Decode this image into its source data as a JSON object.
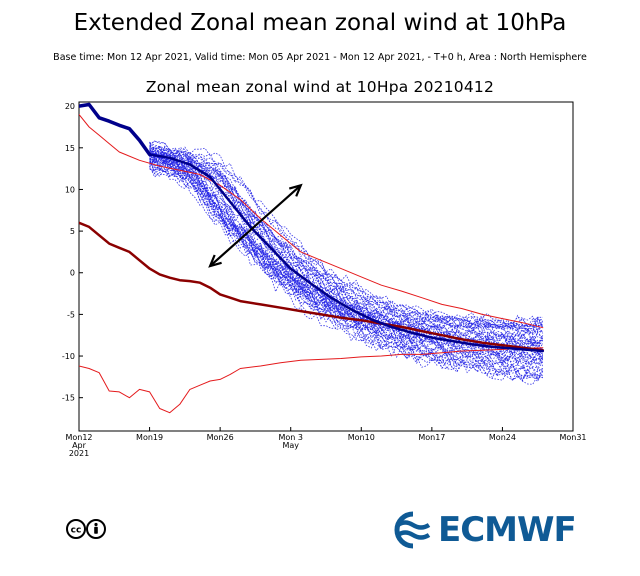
{
  "header": {
    "title": "Extended Zonal mean zonal wind at 10hPa",
    "subtitle": "Base time: Mon 12 Apr 2021, Valid time: Mon 05 Apr 2021 - Mon 12 Apr 2021, - T+0 h, Area : North Hemisphere"
  },
  "brand": {
    "name": "ECMWF",
    "color": "#0f5a95",
    "license_icon": "creative-commons-cc-by-icon"
  },
  "colors": {
    "ensemble": "#2323e6",
    "ensemble_mean": "#00008b",
    "climate": "#e41a1c",
    "climate_mean": "#8b0000",
    "arrow": "#000000"
  },
  "chart_data": {
    "type": "line",
    "title": "Zonal mean zonal wind at 10Hpa 20210412",
    "xlabel": "",
    "ylabel": "",
    "x_unit": "days since Mon 12 Apr 2021",
    "xlim": [
      0,
      49
    ],
    "ylim": [
      -19,
      20.5
    ],
    "y_ticks": [
      20,
      15,
      10,
      5,
      0,
      -5,
      -10,
      -15
    ],
    "x_ticks": [
      {
        "x": 0,
        "label": "Mon12",
        "sub": [
          "Apr",
          "2021"
        ]
      },
      {
        "x": 7,
        "label": "Mon19",
        "sub": []
      },
      {
        "x": 14,
        "label": "Mon26",
        "sub": []
      },
      {
        "x": 21,
        "label": "Mon 3",
        "sub": [
          "May"
        ]
      },
      {
        "x": 28,
        "label": "Mon10",
        "sub": []
      },
      {
        "x": 35,
        "label": "Mon17",
        "sub": []
      },
      {
        "x": 42,
        "label": "Mon24",
        "sub": []
      },
      {
        "x": 49,
        "label": "Mon31",
        "sub": []
      }
    ],
    "series": [
      {
        "role": "analysis",
        "color": "#00008b",
        "width": 3.5,
        "x": [
          0,
          1,
          2,
          3,
          4,
          5,
          6,
          7
        ],
        "y": [
          20,
          20.2,
          18.6,
          18.2,
          17.7,
          17.3,
          15.9,
          14.2
        ]
      },
      {
        "role": "ensemble_mean",
        "color": "#00008b",
        "width": 2.5,
        "x": [
          7,
          9,
          11,
          13,
          15,
          17,
          19,
          21,
          23,
          25,
          27,
          29,
          31,
          33,
          35,
          37,
          39,
          41,
          43,
          45,
          46
        ],
        "y": [
          14.2,
          13.8,
          13.0,
          11.5,
          8.5,
          5.5,
          3.0,
          0.5,
          -1.3,
          -3.0,
          -4.4,
          -5.6,
          -6.5,
          -7.2,
          -7.8,
          -8.2,
          -8.6,
          -8.9,
          -9.1,
          -9.3,
          -9.4
        ]
      },
      {
        "role": "climate_mean",
        "color": "#8b0000",
        "width": 2.5,
        "x": [
          0,
          1,
          2,
          3,
          4,
          5,
          6,
          7,
          8,
          9,
          10,
          11,
          12,
          13,
          14,
          15,
          16,
          18,
          20,
          22,
          24,
          26,
          28,
          30,
          32,
          34,
          36,
          38,
          40,
          42,
          44,
          46
        ],
        "y": [
          6.0,
          5.5,
          4.5,
          3.5,
          3.0,
          2.5,
          1.5,
          0.5,
          -0.2,
          -0.6,
          -0.9,
          -1.0,
          -1.2,
          -1.8,
          -2.6,
          -3.0,
          -3.4,
          -3.8,
          -4.2,
          -4.6,
          -5.0,
          -5.4,
          -5.7,
          -6.1,
          -6.5,
          -7.0,
          -7.5,
          -8.0,
          -8.4,
          -8.7,
          -9.0,
          -9.3
        ]
      },
      {
        "role": "climate_max",
        "color": "#e41a1c",
        "width": 1,
        "x": [
          0,
          1,
          2,
          3,
          4,
          6,
          8,
          10,
          12,
          14,
          16,
          18,
          20,
          22,
          24,
          26,
          28,
          30,
          32,
          34,
          36,
          38,
          40,
          42,
          44,
          46
        ],
        "y": [
          19.0,
          17.5,
          16.5,
          15.5,
          14.5,
          13.5,
          12.8,
          12.3,
          11.8,
          10.5,
          8.8,
          6.5,
          4.5,
          2.5,
          1.5,
          0.5,
          -0.5,
          -1.5,
          -2.2,
          -3.0,
          -3.8,
          -4.3,
          -5.0,
          -5.5,
          -6.0,
          -6.6
        ]
      },
      {
        "role": "climate_min",
        "color": "#e41a1c",
        "width": 1,
        "x": [
          0,
          1,
          2,
          3,
          4,
          5,
          6,
          7,
          8,
          9,
          10,
          11,
          12,
          13,
          14,
          15,
          16,
          18,
          20,
          22,
          24,
          26,
          28,
          30,
          32,
          34,
          36,
          38,
          40,
          42,
          44,
          46
        ],
        "y": [
          -11.2,
          -11.5,
          -12.0,
          -14.2,
          -14.3,
          -15.0,
          -14.0,
          -14.3,
          -16.3,
          -16.8,
          -15.8,
          -14.0,
          -13.5,
          -13.0,
          -12.8,
          -12.2,
          -11.5,
          -11.2,
          -10.8,
          -10.5,
          -10.4,
          -10.3,
          -10.1,
          -10.0,
          -9.8,
          -9.8,
          -9.6,
          -9.4,
          -9.3,
          -9.2,
          -9.1,
          -9.0
        ]
      }
    ],
    "ensemble": {
      "count": 51,
      "start_x": 7,
      "end_x": 46,
      "start_y_range": [
        12.5,
        15.5
      ],
      "end_y_range": [
        -12.8,
        -5.8
      ]
    },
    "annotations": [
      {
        "type": "double-arrow",
        "from": [
          13,
          0.8
        ],
        "to": [
          22,
          10.5
        ]
      }
    ]
  }
}
